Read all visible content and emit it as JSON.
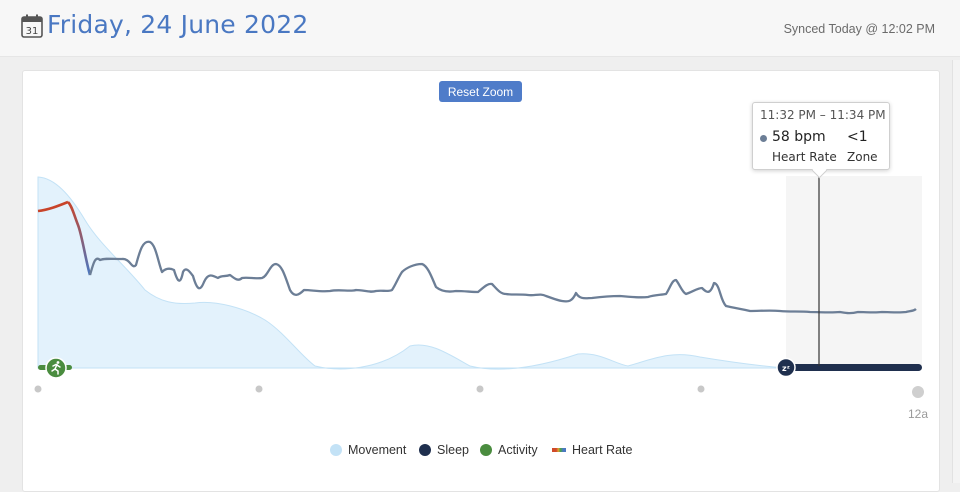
{
  "header": {
    "date_title": "Friday, 24 June 2022",
    "synced": "Synced Today @ 12:02 PM",
    "calendar_icon_day": "31"
  },
  "chart": {
    "reset_zoom_label": "Reset Zoom",
    "x_end_label": "12a",
    "tooltip": {
      "time_range": "11:32 PM – 11:34 PM",
      "bpm": "58 bpm",
      "zone": "<1",
      "bpm_label": "Heart Rate",
      "zone_label": "Zone"
    },
    "legend": [
      {
        "label": "Movement",
        "color": "#c3e2f6"
      },
      {
        "label": "Sleep",
        "color": "#1f2f4e"
      },
      {
        "label": "Activity",
        "color": "#4a8c3f"
      },
      {
        "label": "Heart Rate",
        "color": "gradient"
      }
    ],
    "icons": {
      "activity": "running-person-icon",
      "sleep": "zzz-sleep-icon"
    }
  }
}
